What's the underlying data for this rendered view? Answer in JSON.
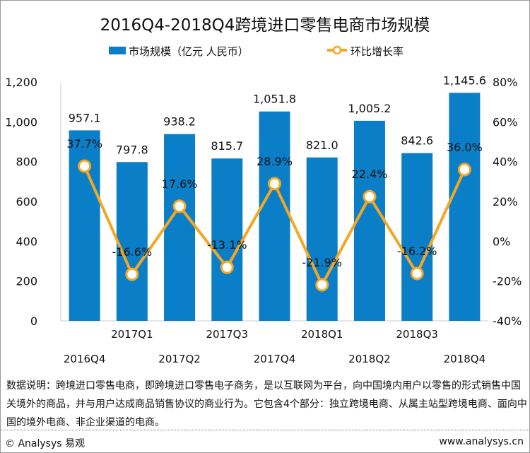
{
  "chart_data": {
    "type": "bar+line",
    "title": "2016Q4-2018Q4跨境进口零售电商市场规模",
    "categories": [
      "2016Q4",
      "2017Q1",
      "2017Q2",
      "2017Q3",
      "2017Q4",
      "2018Q1",
      "2018Q2",
      "2018Q3",
      "2018Q4"
    ],
    "series": [
      {
        "name": "市场规模（亿元 人民币）",
        "type": "bar",
        "axis": "left",
        "color": "#0a7fc8",
        "values": [
          957.1,
          797.8,
          938.2,
          815.7,
          1051.8,
          821.0,
          1005.2,
          842.6,
          1145.6
        ],
        "labels": [
          "957.1",
          "797.8",
          "938.2",
          "815.7",
          "1,051.8",
          "821.0",
          "1,005.2",
          "842.6",
          "1,145.6"
        ]
      },
      {
        "name": "环比增长率",
        "type": "line",
        "axis": "right",
        "color": "#f5a623",
        "values": [
          37.7,
          -16.6,
          17.6,
          -13.1,
          28.9,
          -21.9,
          22.4,
          -16.2,
          36.0
        ],
        "labels": [
          "37.7%",
          "-16.6%",
          "17.6%",
          "-13.1%",
          "28.9%",
          "-21.9%",
          "22.4%",
          "-16.2%",
          "36.0%"
        ]
      }
    ],
    "ylim": [
      0,
      1200
    ],
    "yticks": [
      "0",
      "200",
      "400",
      "600",
      "800",
      "1,000",
      "1,200"
    ],
    "y2lim": [
      -40,
      80
    ],
    "y2ticks": [
      "-40%",
      "-20%",
      "0%",
      "20%",
      "40%",
      "60%",
      "80%"
    ],
    "legend": "top"
  },
  "note": "数据说明：跨境进口零售电商，即跨境进口零售电子商务，是以互联网为平台，向中国境内用户以零售的形式销售中国关境外的商品，并与用户达成商品销售协议的商业行为。它包含4个部分：独立跨境电商、从属主站型跨境电商、面向中国的境外电商、非企业渠道的电商。",
  "footer": {
    "left": "© Analysys 易观",
    "right": "www.analysys.cn"
  }
}
